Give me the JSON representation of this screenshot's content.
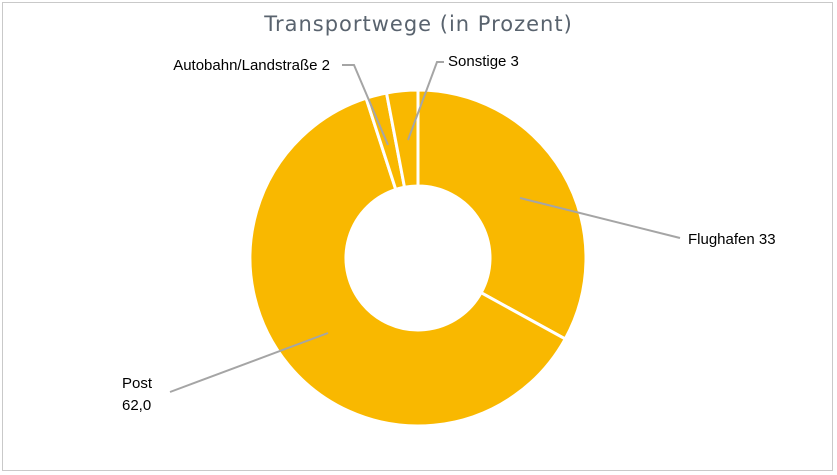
{
  "chart_data": {
    "type": "donut",
    "title": "Transportwege (in Prozent)",
    "slices": [
      {
        "label": "Flughafen 33",
        "value": 33
      },
      {
        "label": "Post\n62,0",
        "value": 62.0
      },
      {
        "label": "Autobahn/Landstraße 2",
        "value": 2
      },
      {
        "label": "Sonstige 3",
        "value": 3
      }
    ],
    "colors": {
      "slice": "#f9b800",
      "separator": "#ffffff",
      "leader": "#a5a5a5"
    }
  }
}
